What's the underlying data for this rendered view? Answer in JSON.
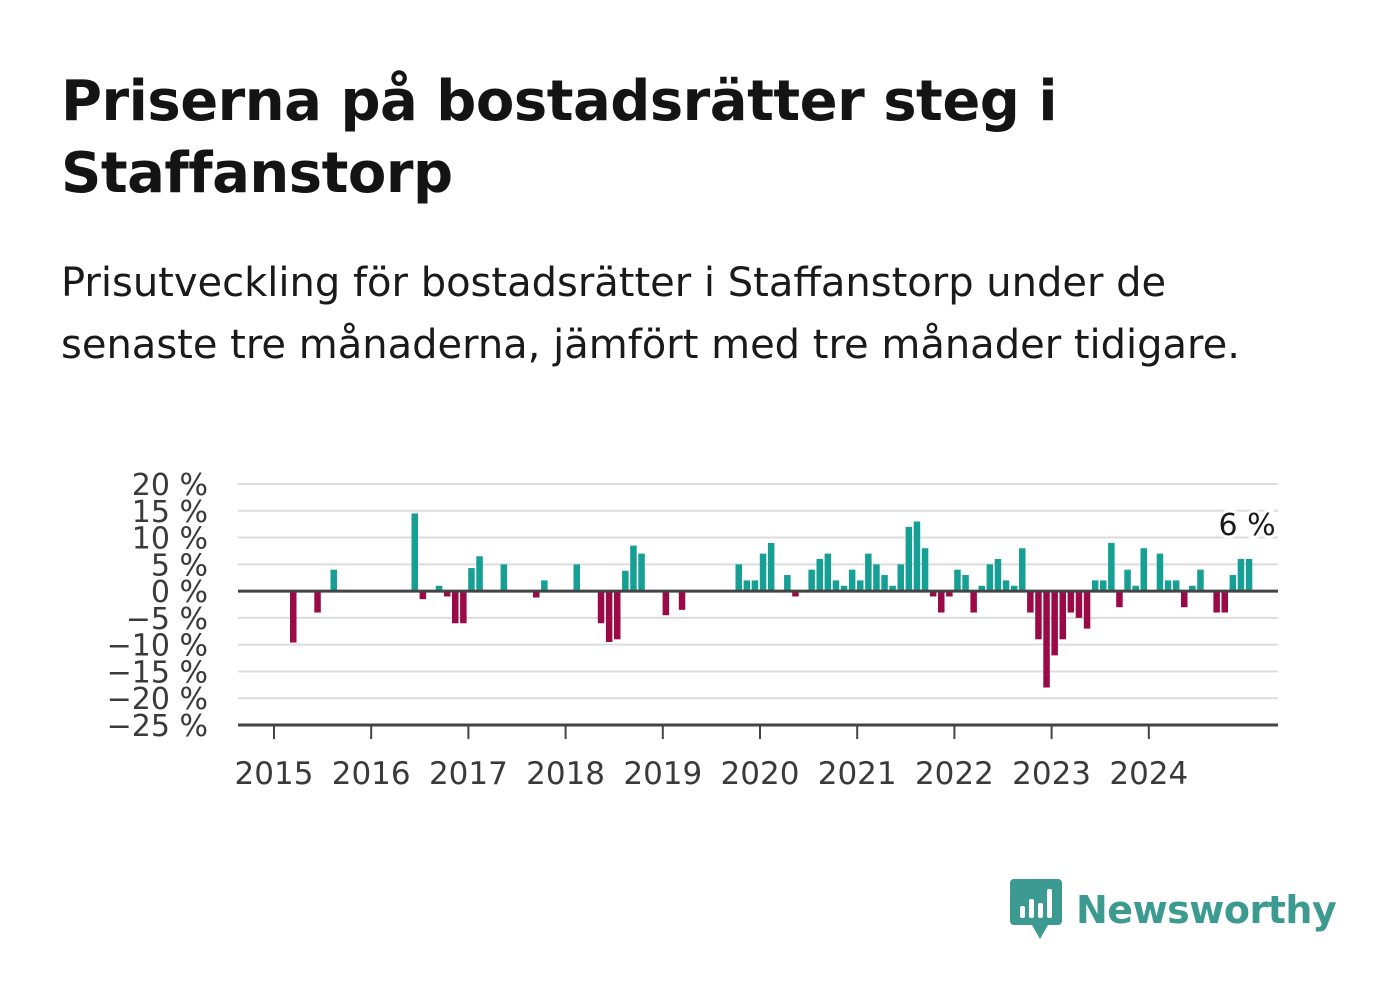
{
  "header": {
    "title": "Priserna på bostadsrätter steg i Staffanstorp",
    "subtitle": "Prisutveckling för bostadsrätter i Staffanstorp under de senaste tre månaderna, jämfört med tre månader tidigare."
  },
  "brand": {
    "name": "Newsworthy",
    "icon": "newsworthy-logo-icon",
    "color": "#3c9a90"
  },
  "colors": {
    "positive": "#16a095",
    "negative": "#9b0a46",
    "grid": "#dcdcdc",
    "axis": "#444444"
  },
  "chart_data": {
    "type": "bar",
    "ylim": [
      -25,
      20
    ],
    "y_ticks": [
      20,
      15,
      10,
      5,
      0,
      -5,
      -10,
      -15,
      -20,
      -25
    ],
    "y_tick_labels": [
      "20 %",
      "15 %",
      "10 %",
      "5 %",
      "0 %",
      "−5 %",
      "−10 %",
      "−15 %",
      "−20 %",
      "−25 %"
    ],
    "x_tick_labels": [
      "2015",
      "2016",
      "2017",
      "2018",
      "2019",
      "2020",
      "2021",
      "2022",
      "2023",
      "2024"
    ],
    "grid": true,
    "series": [
      {
        "start": "2015-01",
        "values": [
          0,
          0,
          -9.6,
          0,
          0,
          -4,
          0,
          4,
          0,
          0,
          0,
          0,
          0,
          0,
          0,
          0,
          0,
          14.5,
          -1.5,
          0,
          1,
          -1,
          -6,
          -6,
          4.3,
          6.5,
          0,
          0,
          5,
          0,
          0,
          0,
          -1.2,
          2,
          0,
          0,
          0,
          5,
          0,
          0,
          -6,
          -9.5,
          -9,
          3.8,
          8.5,
          7,
          0,
          0,
          -4.5,
          0,
          -3.5,
          0,
          0,
          0,
          0,
          0,
          0,
          5,
          2,
          2,
          7,
          9,
          0,
          3,
          -1,
          0,
          4,
          6,
          7,
          2,
          1,
          4,
          2,
          7,
          5,
          3,
          1,
          5,
          12,
          13,
          8,
          -1,
          -4,
          -1,
          4,
          3,
          -4,
          1,
          5,
          6,
          2,
          1,
          8,
          -4,
          -9,
          -18,
          -12,
          -9,
          -4,
          -5,
          -7,
          2,
          2,
          9,
          -3,
          4,
          1,
          8,
          0,
          7,
          2,
          2,
          -3,
          1,
          4,
          0,
          -4,
          -4,
          3,
          6,
          6
        ],
        "last_label": "6 %"
      }
    ]
  }
}
